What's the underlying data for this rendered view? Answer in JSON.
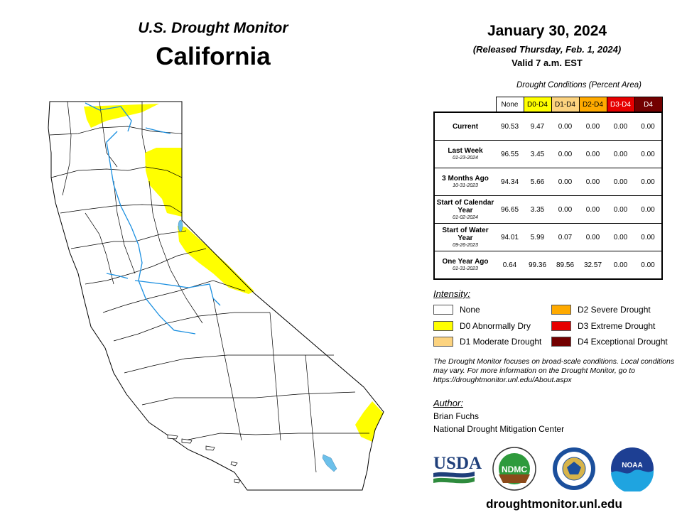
{
  "header": {
    "title": "U.S. Drought Monitor",
    "state": "California",
    "date": "January 30, 2024",
    "released": "(Released Thursday, Feb. 1, 2024)",
    "valid": "Valid 7 a.m. EST"
  },
  "table": {
    "caption": "Drought Conditions (Percent Area)",
    "columns": [
      {
        "label": "None",
        "color": "#ffffff",
        "text_color": "#000000"
      },
      {
        "label": "D0-D4",
        "color": "#ffff00",
        "text_color": "#000000"
      },
      {
        "label": "D1-D4",
        "color": "#fcd37f",
        "text_color": "#000000"
      },
      {
        "label": "D2-D4",
        "color": "#ffaa00",
        "text_color": "#000000"
      },
      {
        "label": "D3-D4",
        "color": "#e60000",
        "text_color": "#ffffff"
      },
      {
        "label": "D4",
        "color": "#730000",
        "text_color": "#ffffff"
      }
    ],
    "rows": [
      {
        "label": "Current",
        "sublabel": "",
        "values": [
          "90.53",
          "9.47",
          "0.00",
          "0.00",
          "0.00",
          "0.00"
        ]
      },
      {
        "label": "Last Week",
        "sublabel": "01-23-2024",
        "values": [
          "96.55",
          "3.45",
          "0.00",
          "0.00",
          "0.00",
          "0.00"
        ]
      },
      {
        "label": "3 Months Ago",
        "sublabel": "10-31-2023",
        "values": [
          "94.34",
          "5.66",
          "0.00",
          "0.00",
          "0.00",
          "0.00"
        ]
      },
      {
        "label": "Start of Calendar Year",
        "sublabel": "01-02-2024",
        "values": [
          "96.65",
          "3.35",
          "0.00",
          "0.00",
          "0.00",
          "0.00"
        ]
      },
      {
        "label": "Start of Water Year",
        "sublabel": "09-26-2023",
        "values": [
          "94.01",
          "5.99",
          "0.07",
          "0.00",
          "0.00",
          "0.00"
        ]
      },
      {
        "label": "One Year Ago",
        "sublabel": "01-31-2023",
        "values": [
          "0.64",
          "99.36",
          "89.56",
          "32.57",
          "0.00",
          "0.00"
        ]
      }
    ]
  },
  "legend": {
    "title": "Intensity:",
    "items": [
      {
        "label": "None",
        "color": "#ffffff"
      },
      {
        "label": "D0 Abnormally Dry",
        "color": "#ffff00"
      },
      {
        "label": "D1 Moderate Drought",
        "color": "#fcd37f"
      },
      {
        "label": "D2 Severe Drought",
        "color": "#ffaa00"
      },
      {
        "label": "D3 Extreme Drought",
        "color": "#e60000"
      },
      {
        "label": "D4 Exceptional Drought",
        "color": "#730000"
      }
    ]
  },
  "note": "The Drought Monitor focuses on broad-scale conditions. Local conditions may vary. For more information on the Drought Monitor, go to https://droughtmonitor.unl.edu/About.aspx",
  "author": {
    "title": "Author:",
    "name": "Brian Fuchs",
    "organization": "National Drought Mitigation Center"
  },
  "logos": {
    "usda": "USDA",
    "ndmc": "NDMC",
    "noaa": "NOAA"
  },
  "website": "droughtmonitor.unl.edu",
  "map_colors": {
    "d0": "#ffff00",
    "water": "#6cc0ea",
    "outline": "#000000"
  }
}
